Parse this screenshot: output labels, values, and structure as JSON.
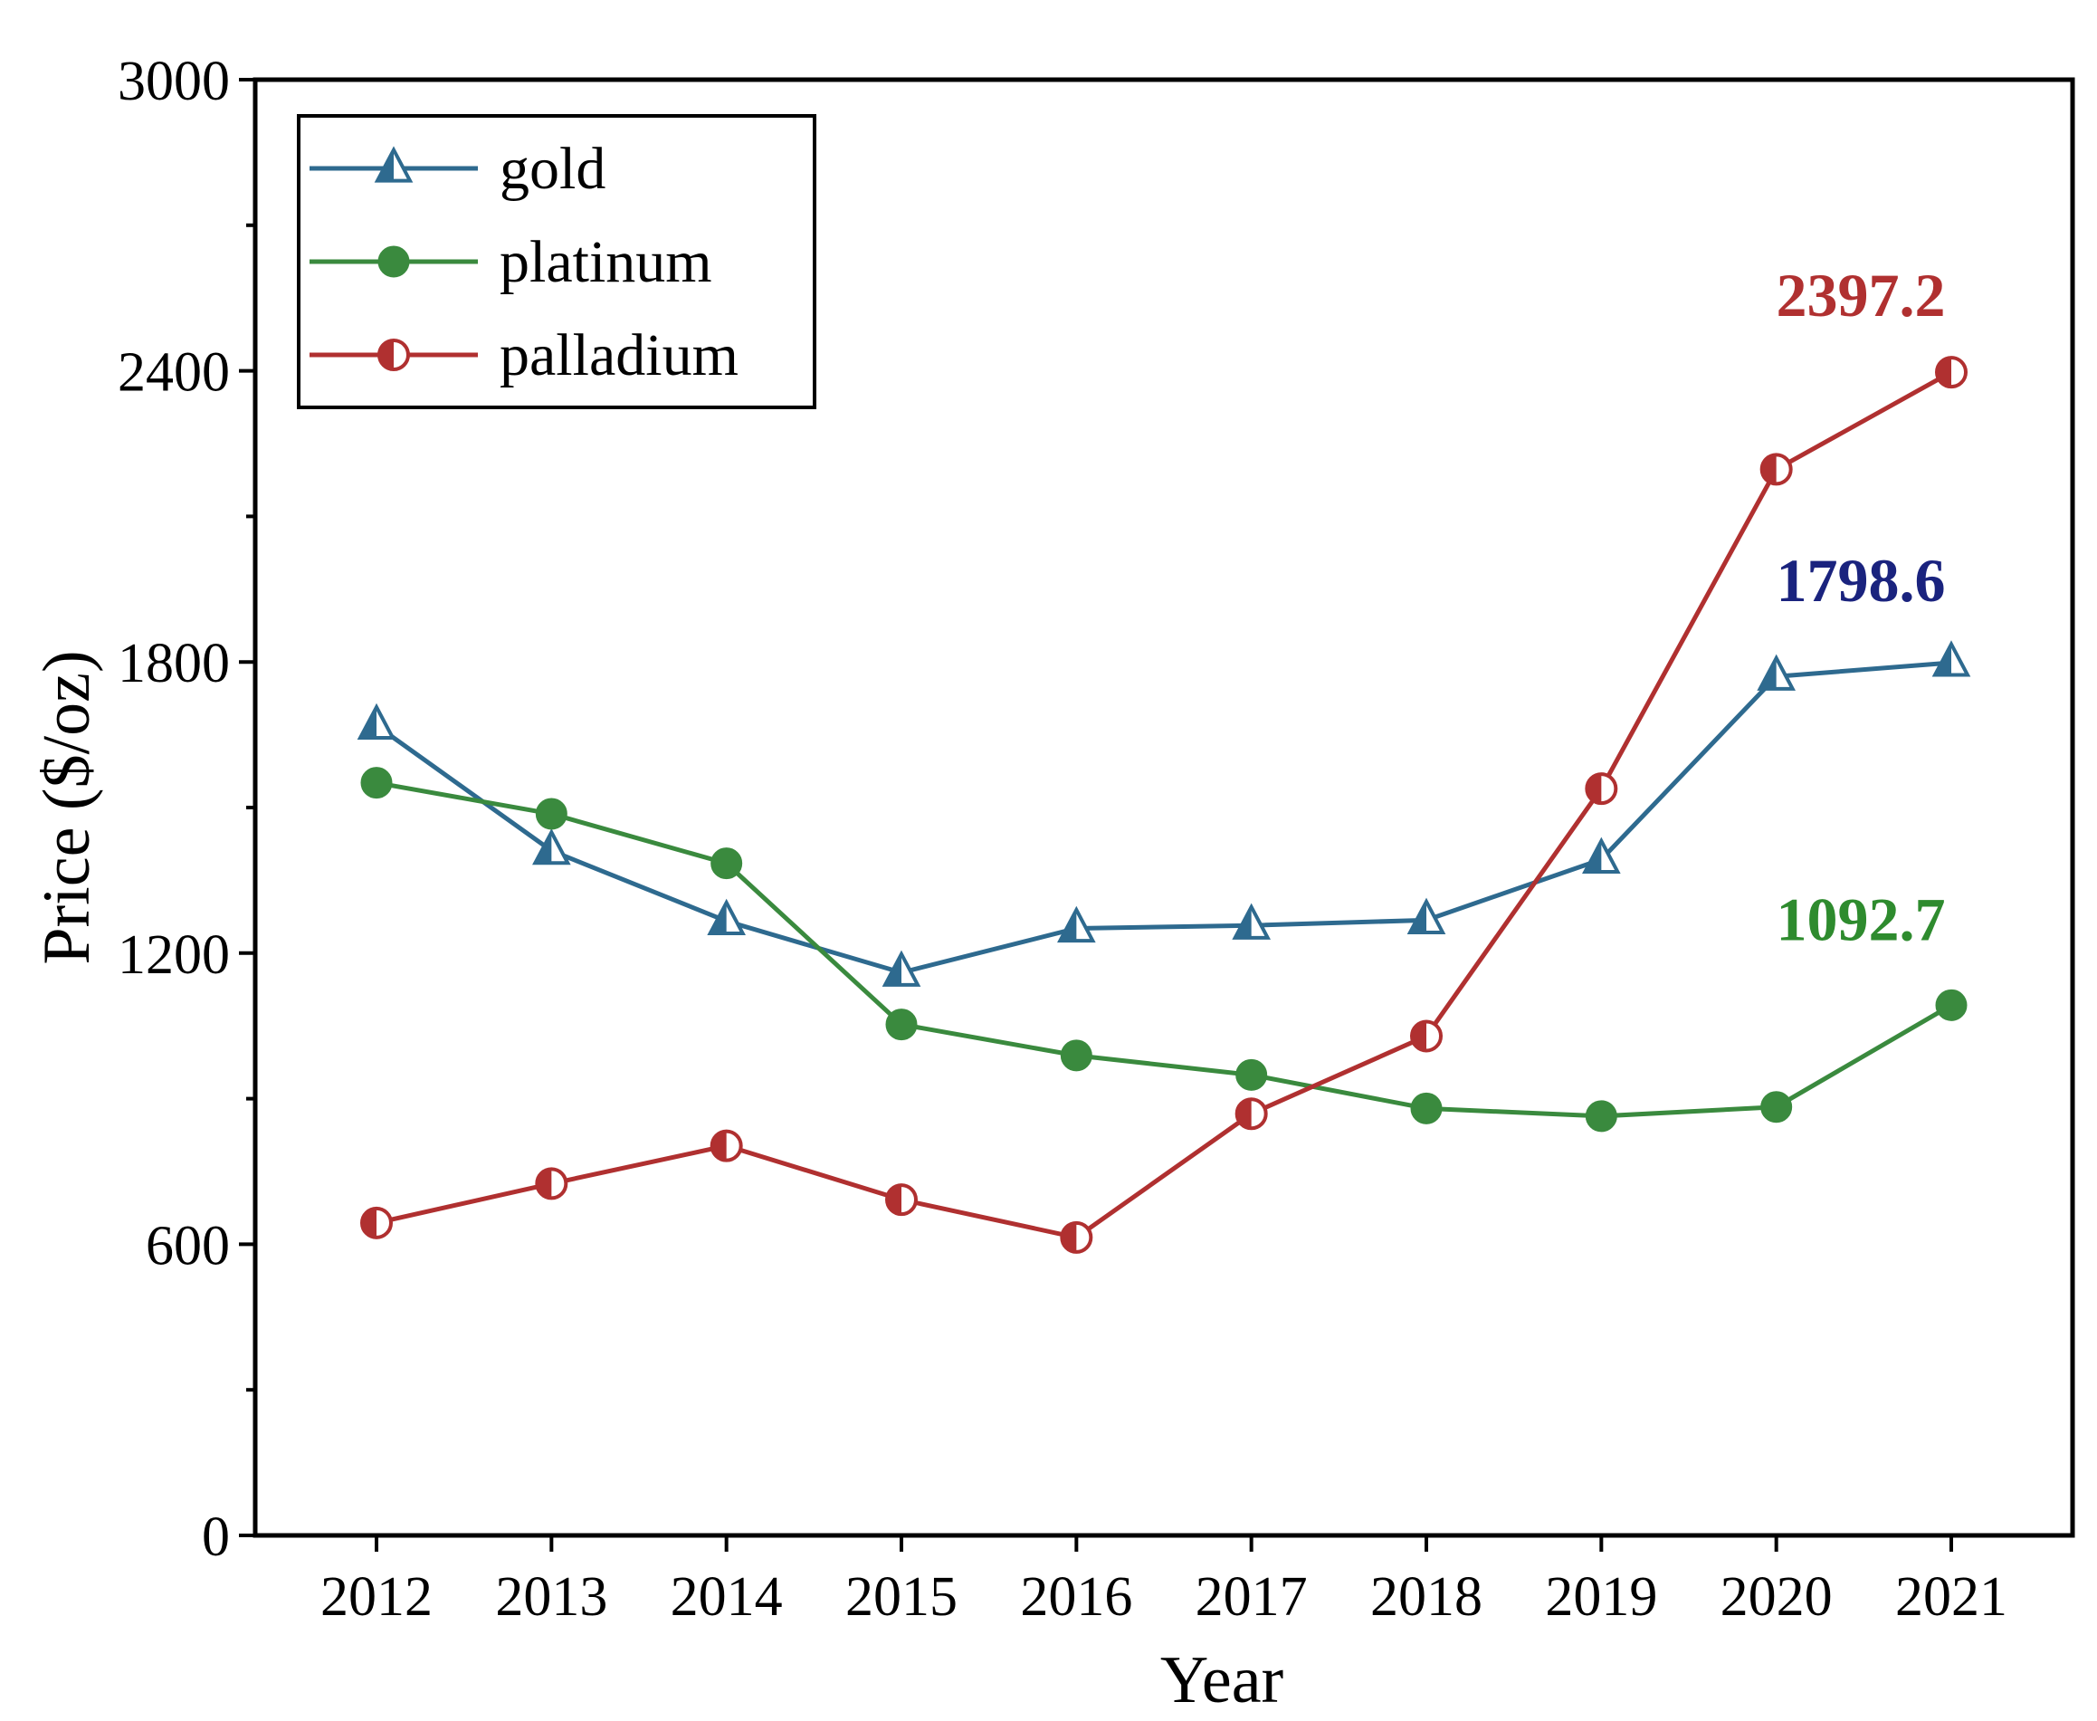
{
  "chart_data": {
    "type": "line",
    "title": "",
    "xlabel": "Year",
    "ylabel": "Price ($/oz)",
    "x": [
      2012,
      2013,
      2014,
      2015,
      2016,
      2017,
      2018,
      2019,
      2020,
      2021
    ],
    "x_tick_labels": [
      "2012",
      "2013",
      "2014",
      "2015",
      "2016",
      "2017",
      "2018",
      "2019",
      "2020",
      "2021"
    ],
    "ylim": [
      0,
      3000
    ],
    "y_ticks": [
      0,
      600,
      1200,
      1800,
      2400,
      3000
    ],
    "y_tick_labels": [
      "0",
      "600",
      "1200",
      "1800",
      "2400",
      "3000"
    ],
    "y_minor_step": 300,
    "grid": false,
    "legend_position": "top-left",
    "series": [
      {
        "name": "gold",
        "color": "#2e6a8f",
        "marker": "triangle-half",
        "values": [
          1669,
          1411,
          1266,
          1160,
          1251,
          1257,
          1268,
          1393,
          1770,
          1798.6
        ]
      },
      {
        "name": "platinum",
        "color": "#3a8a3e",
        "marker": "circle-filled",
        "values": [
          1551,
          1487,
          1385,
          1053,
          989,
          949,
          880,
          864,
          883,
          1092.7
        ]
      },
      {
        "name": "palladium",
        "color": "#b03030",
        "marker": "circle-half",
        "values": [
          644,
          725,
          803,
          692,
          614,
          869,
          1029,
          1539,
          2197,
          2397.2
        ]
      }
    ],
    "annotations": [
      {
        "text": "2397.2",
        "series": "palladium",
        "color": "#b03030"
      },
      {
        "text": "1798.6",
        "series": "gold",
        "color": "#1a237e"
      },
      {
        "text": "1092.7",
        "series": "platinum",
        "color": "#2e8b2e"
      }
    ]
  }
}
